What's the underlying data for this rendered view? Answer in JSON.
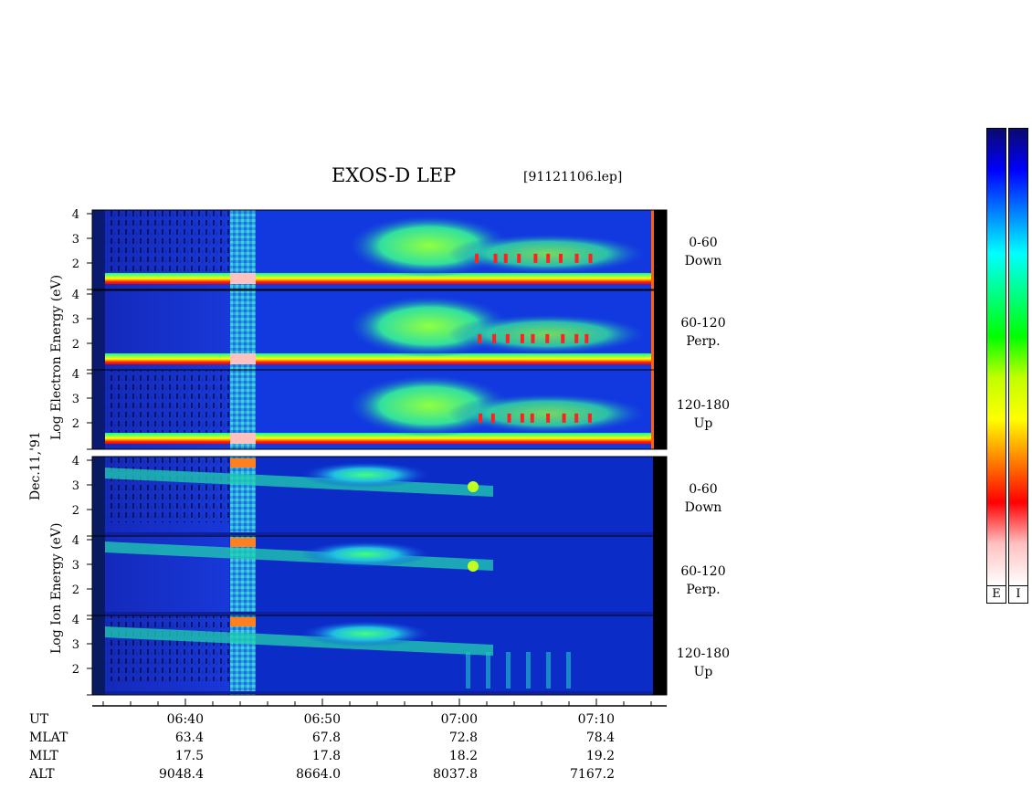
{
  "header": {
    "title": "EXOS-D LEP",
    "filename": "[91121106.lep]"
  },
  "axis_labels": {
    "electron": "Log Electron Energy (eV)",
    "ion": "Log Ion Energy (eV)",
    "date": "Dec.11,'91"
  },
  "panels": [
    {
      "range": "0-60",
      "dir": "Down"
    },
    {
      "range": "60-120",
      "dir": "Perp."
    },
    {
      "range": "120-180",
      "dir": "Up"
    },
    {
      "range": "0-60",
      "dir": "Down"
    },
    {
      "range": "60-120",
      "dir": "Perp."
    },
    {
      "range": "120-180",
      "dir": "Up"
    }
  ],
  "colorbars": {
    "electron_label": "E",
    "ion_label": "I",
    "stops": [
      "#0a0a6e",
      "#0000ff",
      "#0080ff",
      "#00ffff",
      "#00ff80",
      "#00ff00",
      "#c0ff00",
      "#ffff00",
      "#ff8000",
      "#ff0000",
      "#ffc0c0",
      "#ffffff"
    ]
  },
  "ephemeris": {
    "row_labels": [
      "UT",
      "MLAT",
      "MLT",
      "ALT"
    ],
    "columns": [
      {
        "UT": "06:40",
        "MLAT": "63.4",
        "MLT": "17.5",
        "ALT": "9048.4"
      },
      {
        "UT": "06:50",
        "MLAT": "67.8",
        "MLT": "17.8",
        "ALT": "8664.0"
      },
      {
        "UT": "07:00",
        "MLAT": "72.8",
        "MLT": "18.2",
        "ALT": "8037.8"
      },
      {
        "UT": "07:10",
        "MLAT": "78.4",
        "MLT": "19.2",
        "ALT": "7167.2"
      }
    ]
  },
  "chart_data": {
    "type": "heatmap",
    "title": "EXOS-D LEP",
    "xlabel": "UT",
    "x_ticks": [
      "06:40",
      "06:50",
      "07:00",
      "07:10"
    ],
    "ylabel_electron": "Log Electron Energy (eV)",
    "ylabel_ion": "Log Ion Energy (eV)",
    "y_ticks": [
      "2",
      "3",
      "4"
    ],
    "ylim": [
      1,
      4
    ],
    "panels": [
      {
        "species": "Electron",
        "pitch_angle": "0-60",
        "direction": "Down"
      },
      {
        "species": "Electron",
        "pitch_angle": "60-120",
        "direction": "Perp."
      },
      {
        "species": "Electron",
        "pitch_angle": "120-180",
        "direction": "Up"
      },
      {
        "species": "Ion",
        "pitch_angle": "0-60",
        "direction": "Down"
      },
      {
        "species": "Ion",
        "pitch_angle": "60-120",
        "direction": "Perp."
      },
      {
        "species": "Ion",
        "pitch_angle": "120-180",
        "direction": "Up"
      }
    ]
  }
}
